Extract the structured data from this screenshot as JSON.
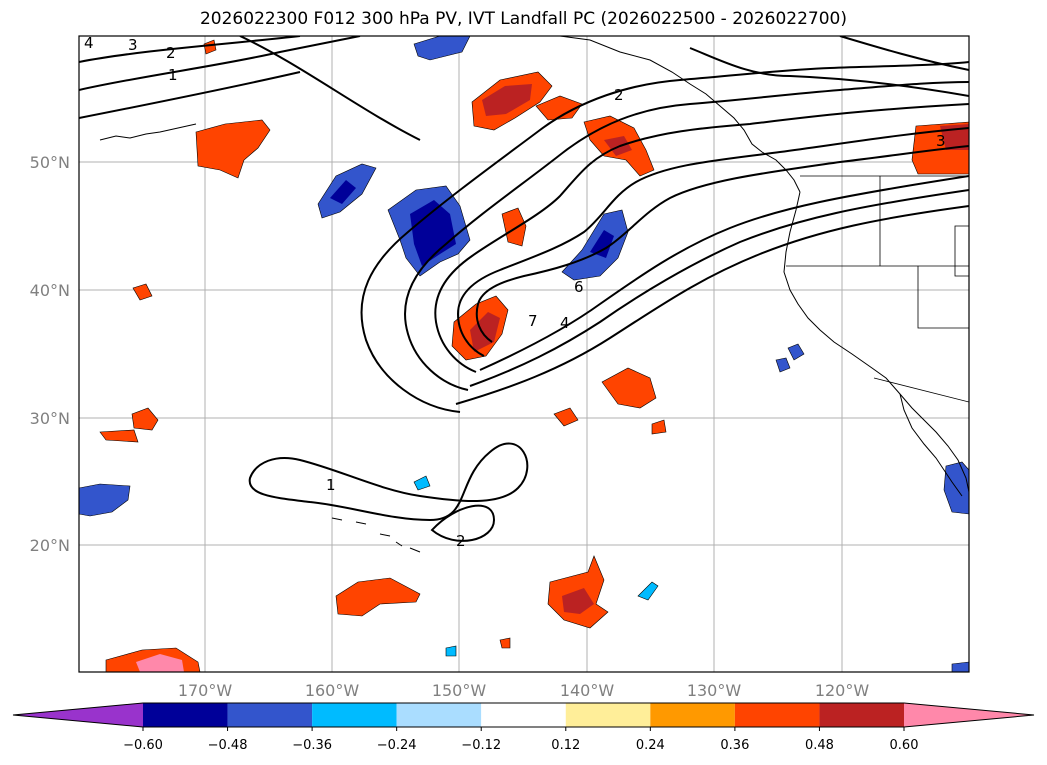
{
  "title": "2026022300 F012 300 hPa PV, IVT Landfall PC (2026022500 - 2026022700)",
  "lat_labels": [
    "50°N",
    "40°N",
    "30°N",
    "20°N"
  ],
  "lon_labels": [
    "170°W",
    "160°W",
    "150°W",
    "140°W",
    "130°W",
    "120°W"
  ],
  "contour_labels": [
    "4",
    "3",
    "2",
    "1",
    "2",
    "7",
    "6",
    "4",
    "1",
    "2",
    "3"
  ],
  "colorbar": {
    "tick_labels": [
      "−0.60",
      "−0.48",
      "−0.36",
      "−0.24",
      "−0.12",
      "0.12",
      "0.24",
      "0.36",
      "0.48",
      "0.60"
    ],
    "colors": [
      "#9933cc",
      "#000099",
      "#3355cc",
      "#00bbff",
      "#aaddff",
      "#ffffff",
      "#ffee99",
      "#ff9900",
      "#ff4400",
      "#bb2222",
      "#ff88aa"
    ]
  }
}
